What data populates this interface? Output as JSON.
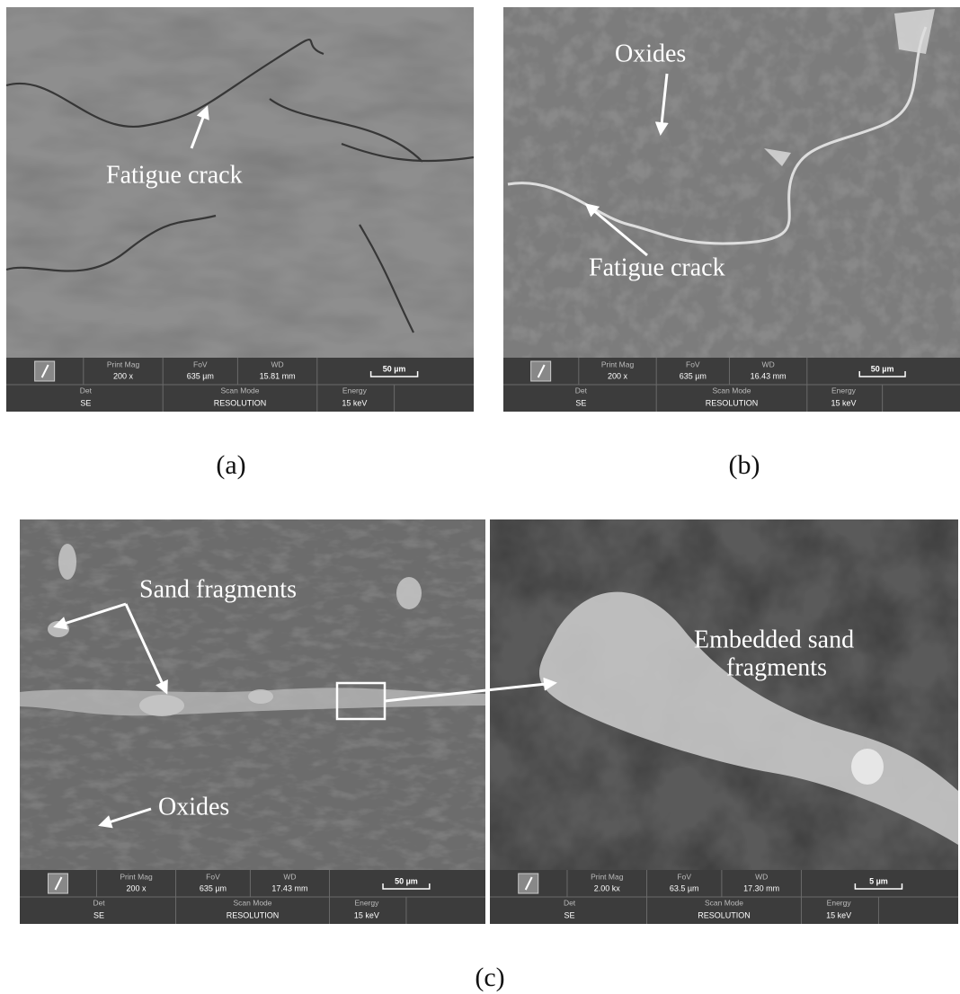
{
  "images": [
    {
      "annotations": [
        "Fatigue crack"
      ],
      "info": {
        "print_mag_label": "Print Mag",
        "print_mag": "200 x",
        "fov_label": "FoV",
        "fov": "635 µm",
        "wd_label": "WD",
        "wd": "15.81 mm",
        "scale": "50 µm",
        "det_label": "Det",
        "det": "SE",
        "scan_mode_label": "Scan Mode",
        "scan_mode": "RESOLUTION",
        "energy_label": "Energy",
        "energy": "15 keV"
      }
    },
    {
      "annotations": [
        "Oxides",
        "Fatigue crack"
      ],
      "info": {
        "print_mag_label": "Print Mag",
        "print_mag": "200 x",
        "fov_label": "FoV",
        "fov": "635 µm",
        "wd_label": "WD",
        "wd": "16.43 mm",
        "scale": "50 µm",
        "det_label": "Det",
        "det": "SE",
        "scan_mode_label": "Scan Mode",
        "scan_mode": "RESOLUTION",
        "energy_label": "Energy",
        "energy": "15 keV"
      }
    },
    {
      "annotations": [
        "Sand fragments",
        "Oxides"
      ],
      "info": {
        "print_mag_label": "Print Mag",
        "print_mag": "200 x",
        "fov_label": "FoV",
        "fov": "635 µm",
        "wd_label": "WD",
        "wd": "17.43 mm",
        "scale": "50 µm",
        "det_label": "Det",
        "det": "SE",
        "scan_mode_label": "Scan Mode",
        "scan_mode": "RESOLUTION",
        "energy_label": "Energy",
        "energy": "15 keV"
      }
    },
    {
      "annotations": [
        "Embedded sand",
        "fragments"
      ],
      "info": {
        "print_mag_label": "Print Mag",
        "print_mag": "2.00 kx",
        "fov_label": "FoV",
        "fov": "63.5 µm",
        "wd_label": "WD",
        "wd": "17.30 mm",
        "scale": "5 µm",
        "det_label": "Det",
        "det": "SE",
        "scan_mode_label": "Scan Mode",
        "scan_mode": "RESOLUTION",
        "energy_label": "Energy",
        "energy": "15 keV"
      }
    }
  ],
  "captions": [
    "(a)",
    "(b)",
    "(c)"
  ]
}
